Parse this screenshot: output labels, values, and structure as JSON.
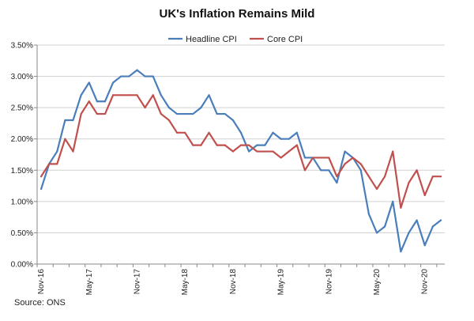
{
  "chart_data": {
    "type": "line",
    "title": "UK's Inflation Remains Mild",
    "source": "Source: ONS",
    "xlabel": "",
    "ylabel": "",
    "ylim": [
      0,
      3.5
    ],
    "y_ticks": [
      0,
      0.5,
      1.0,
      1.5,
      2.0,
      2.5,
      3.0,
      3.5
    ],
    "y_tick_labels": [
      "0.00%",
      "0.50%",
      "1.00%",
      "1.50%",
      "2.00%",
      "2.50%",
      "3.00%",
      "3.50%"
    ],
    "x_tick_labels": [
      "Nov-16",
      "May-17",
      "Nov-17",
      "May-18",
      "Nov-18",
      "May-19",
      "Nov-19",
      "May-20",
      "Nov-20"
    ],
    "x_tick_index": [
      0,
      6,
      12,
      18,
      24,
      30,
      36,
      42,
      48
    ],
    "grid": "horizontal",
    "legend_position": "top-center",
    "series": [
      {
        "name": "Headline CPI",
        "color": "#4a7ebb",
        "values": [
          1.2,
          1.6,
          1.8,
          2.3,
          2.3,
          2.7,
          2.9,
          2.6,
          2.6,
          2.9,
          3.0,
          3.0,
          3.1,
          3.0,
          3.0,
          2.7,
          2.5,
          2.4,
          2.4,
          2.4,
          2.5,
          2.7,
          2.4,
          2.4,
          2.3,
          2.1,
          1.8,
          1.9,
          1.9,
          2.1,
          2.0,
          2.0,
          2.1,
          1.7,
          1.7,
          1.5,
          1.5,
          1.3,
          1.8,
          1.7,
          1.5,
          0.8,
          0.5,
          0.6,
          1.0,
          0.2,
          0.5,
          0.7,
          0.3,
          0.6,
          0.7
        ]
      },
      {
        "name": "Core CPI",
        "color": "#c0504d",
        "values": [
          1.4,
          1.6,
          1.6,
          2.0,
          1.8,
          2.4,
          2.6,
          2.4,
          2.4,
          2.7,
          2.7,
          2.7,
          2.7,
          2.5,
          2.7,
          2.4,
          2.3,
          2.1,
          2.1,
          1.9,
          1.9,
          2.1,
          1.9,
          1.9,
          1.8,
          1.9,
          1.9,
          1.8,
          1.8,
          1.8,
          1.7,
          1.8,
          1.9,
          1.5,
          1.7,
          1.7,
          1.7,
          1.4,
          1.6,
          1.7,
          1.6,
          1.4,
          1.2,
          1.4,
          1.8,
          0.9,
          1.3,
          1.5,
          1.1,
          1.4,
          1.4
        ]
      }
    ]
  }
}
